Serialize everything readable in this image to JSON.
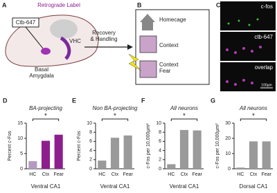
{
  "panel_a": {
    "label": "A",
    "title": "Retrograde Label",
    "tracer": "Ctb-647",
    "region": "VHC",
    "target_lines": [
      "Basal",
      "Amygdala"
    ],
    "arrow_lines": [
      "Recovery",
      "& Handling"
    ]
  },
  "panel_b": {
    "label": "B",
    "homecage": "Homecage",
    "context": "Context",
    "context_fear_lines": [
      "Context",
      "Fear"
    ]
  },
  "panel_c": {
    "label": "C",
    "channels": [
      "c-fos",
      "ctb-647",
      "overlap"
    ],
    "scale_bar": "100µm"
  },
  "chart_data": [
    {
      "type": "bar",
      "panel": "D",
      "title": "BA-projecting",
      "ylabel": "Percent c-Fos",
      "xlabel": "Ventral CA1",
      "categories": [
        "HC",
        "Ctx",
        "Fear"
      ],
      "values": [
        2.5,
        9.2,
        11.2
      ],
      "colors": [
        "#b59ac0",
        "#8e1e8e",
        "#8e1e8e"
      ],
      "ylim": [
        0,
        15
      ],
      "yticks": [
        0,
        5,
        10,
        15
      ],
      "annotation": "*"
    },
    {
      "type": "bar",
      "panel": "E",
      "title": "Non BA-projecting",
      "ylabel": "Percent c-Fos",
      "xlabel": "Ventral CA1",
      "categories": [
        "HC",
        "Ctx",
        "Fear"
      ],
      "values": [
        1.8,
        6.8,
        7.3
      ],
      "colors": [
        "#9a9a9a",
        "#9a9a9a",
        "#9a9a9a"
      ],
      "ylim": [
        0,
        10
      ],
      "yticks": [
        0,
        2,
        4,
        6,
        8,
        10
      ],
      "annotation": "*"
    },
    {
      "type": "bar",
      "panel": "F",
      "title": "All neurons",
      "ylabel": "c-Fos per 10,000µm²",
      "xlabel": "Ventral CA1",
      "categories": [
        "HC",
        "Ctx",
        "Fear"
      ],
      "values": [
        1.0,
        8.5,
        8.4
      ],
      "colors": [
        "#9a9a9a",
        "#9a9a9a",
        "#9a9a9a"
      ],
      "ylim": [
        0,
        10
      ],
      "yticks": [
        0,
        2,
        4,
        6,
        8,
        10
      ],
      "annotation": "*"
    },
    {
      "type": "bar",
      "panel": "G",
      "title": "All neurons",
      "ylabel": "c-Fos per 10,000µm²",
      "xlabel": "Dorsal CA1",
      "categories": [
        "HC",
        "Ctx",
        "Fear"
      ],
      "values": [
        0.8,
        18,
        18
      ],
      "colors": [
        "#9a9a9a",
        "#9a9a9a",
        "#9a9a9a"
      ],
      "ylim": [
        0,
        30
      ],
      "yticks": [
        0,
        10,
        20,
        30
      ],
      "annotation": "*"
    }
  ]
}
